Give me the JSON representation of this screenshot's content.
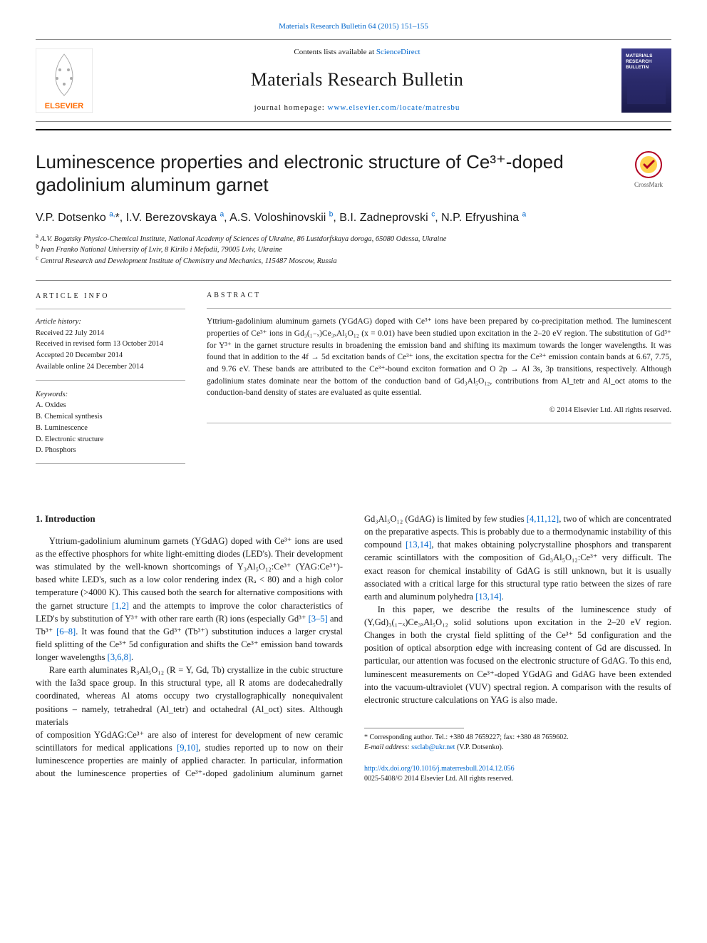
{
  "citation_line": "Materials Research Bulletin 64 (2015) 151–155",
  "masthead": {
    "contents_prefix": "Contents lists available at ",
    "contents_link": "ScienceDirect",
    "journal_name": "Materials Research Bulletin",
    "homepage_prefix": "journal homepage: ",
    "homepage_link": "www.elsevier.com/locate/matresbu",
    "elsevier_tree_color": "#ff6a00",
    "elsevier_text": "ELSEVIER",
    "cover_gradient_top": "#3a3a8a",
    "cover_gradient_bottom": "#1a1a4a",
    "cover_title_1": "MATERIALS",
    "cover_title_2": "RESEARCH",
    "cover_title_3": "BULLETIN"
  },
  "title": "Luminescence properties and electronic structure of Ce³⁺-doped gadolinium aluminum garnet",
  "crossmark_label": "CrossMark",
  "authors_html": "V.P. Dotsenko <sup>a,</sup>*, I.V. Berezovskaya <sup>a</sup>, A.S. Voloshinovskii <sup>b</sup>, B.I. Zadneprovski <sup>c</sup>, N.P. Efryushina <sup>a</sup>",
  "affiliations": [
    {
      "sup": "a",
      "text": "A.V. Bogatsky Physico-Chemical Institute, National Academy of Sciences of Ukraine, 86 Lustdorfskaya doroga, 65080 Odessa, Ukraine"
    },
    {
      "sup": "b",
      "text": "Ivan Franko National University of Lviv, 8 Kirilo i Mefodii, 79005 Lviv, Ukraine"
    },
    {
      "sup": "c",
      "text": "Central Research and Development Institute of Chemistry and Mechanics, 115487 Moscow, Russia"
    }
  ],
  "article_info": {
    "heading": "ARTICLE INFO",
    "history_label": "Article history:",
    "received": "Received 22 July 2014",
    "revised": "Received in revised form 13 October 2014",
    "accepted": "Accepted 20 December 2014",
    "online": "Available online 24 December 2014",
    "keywords_label": "Keywords:",
    "keywords": [
      "A. Oxides",
      "B. Chemical synthesis",
      "B. Luminescence",
      "D. Electronic structure",
      "D. Phosphors"
    ]
  },
  "abstract": {
    "heading": "ABSTRACT",
    "text": "Yttrium-gadolinium aluminum garnets (YGdAG) doped with Ce³⁺ ions have been prepared by co-precipitation method. The luminescent properties of Ce³⁺ ions in Gd₃(₁₋ₓ)Ce₃ₓAl₅O₁₂ (x = 0.01) have been studied upon excitation in the 2–20 eV region. The substitution of Gd³⁺ for Y³⁺ in the garnet structure results in broadening the emission band and shifting its maximum towards the longer wavelengths. It was found that in addition to the 4f → 5d excitation bands of Ce³⁺ ions, the excitation spectra for the Ce³⁺ emission contain bands at 6.67, 7.75, and 9.76 eV. These bands are attributed to the Ce³⁺-bound exciton formation and O 2p → Al 3s, 3p transitions, respectively. Although gadolinium states dominate near the bottom of the conduction band of Gd₃Al₅O₁₂, contributions from Al_tetr and Al_oct atoms to the conduction-band density of states are evaluated as quite essential.",
    "copyright": "© 2014 Elsevier Ltd. All rights reserved."
  },
  "body": {
    "section_title": "1. Introduction",
    "p1": "Yttrium-gadolinium aluminum garnets (YGdAG) doped with Ce³⁺ ions are used as the effective phosphors for white light-emitting diodes (LED's). Their development was stimulated by the well-known shortcomings of Y₃Al₅O₁₂:Ce³⁺ (YAG:Ce³⁺)-based white LED's, such as a low color rendering index (Rₐ < 80) and a high color temperature (>4000 K). This caused both the search for alternative compositions with the garnet structure [1,2] and the attempts to improve the color characteristics of LED's by substitution of Y³⁺ with other rare earth (R) ions (especially Gd³⁺ [3–5] and Tb³⁺ [6–8]. It was found that the Gd³⁺ (Tb³⁺) substitution induces a larger crystal field splitting of the Ce³⁺ 5d configuration and shifts the Ce³⁺ emission band towards longer wavelengths [3,6,8].",
    "p2": "Rare earth aluminates R₃Al₅O₁₂ (R = Y, Gd, Tb) crystallize in the cubic structure with the Ia3d space group. In this structural type, all R atoms are dodecahedrally coordinated, whereas Al atoms occupy two crystallographically nonequivalent positions – namely, tetrahedral (Al_tetr) and octahedral (Al_oct) sites. Although materials",
    "p3": "of composition YGdAG:Ce³⁺ are also of interest for development of new ceramic scintillators for medical applications [9,10], studies reported up to now on their luminescence properties are mainly of applied character. In particular, information about the luminescence properties of Ce³⁺-doped gadolinium aluminum garnet Gd₃Al₅O₁₂ (GdAG) is limited by few studies [4,11,12], two of which are concentrated on the preparative aspects. This is probably due to a thermodynamic instability of this compound [13,14], that makes obtaining polycrystalline phosphors and transparent ceramic scintillators with the composition of Gd₃Al₅O₁₂:Ce³⁺ very difficult. The exact reason for chemical instability of GdAG is still unknown, but it is usually associated with a critical large for this structural type ratio between the sizes of rare earth and aluminum polyhedra [13,14].",
    "p4": "In this paper, we describe the results of the luminescence study of (Y,Gd)₃(₁₋ₓ)Ce₃ₓAl₅O₁₂ solid solutions upon excitation in the 2–20 eV region. Changes in both the crystal field splitting of the Ce³⁺ 5d configuration and the position of optical absorption edge with increasing content of Gd are discussed. In particular, our attention was focused on the electronic structure of GdAG. To this end, luminescent measurements on Ce³⁺-doped YGdAG and GdAG have been extended into the vacuum-ultraviolet (VUV) spectral region. A comparison with the results of electronic structure calculations on YAG is also made."
  },
  "footnote": {
    "corr": "* Corresponding author. Tel.: +380 48 7659227; fax: +380 48 7659602.",
    "email_label": "E-mail address: ",
    "email": "ssclab@ukr.net",
    "email_suffix": " (V.P. Dotsenko)."
  },
  "doi": {
    "link": "http://dx.doi.org/10.1016/j.materresbull.2014.12.056",
    "issn_line": "0025-5408/© 2014 Elsevier Ltd. All rights reserved."
  },
  "colors": {
    "link": "#0066cc",
    "text": "#1a1a1a",
    "rule": "#888888"
  }
}
